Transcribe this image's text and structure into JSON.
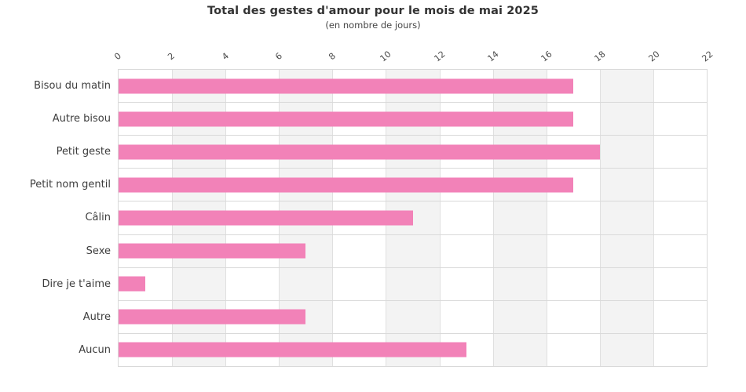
{
  "chart_data": {
    "type": "bar",
    "orientation": "horizontal",
    "title": "Total des gestes d'amour pour le mois de mai 2025",
    "subtitle": "(en nombre de jours)",
    "categories": [
      "Bisou du matin",
      "Autre bisou",
      "Petit geste",
      "Petit nom gentil",
      "Câlin",
      "Sexe",
      "Dire je t'aime",
      "Autre",
      "Aucun"
    ],
    "values": [
      17,
      17,
      18,
      17,
      11,
      7,
      1,
      7,
      13
    ],
    "xlabel": "",
    "ylabel": "",
    "xlim": [
      0,
      22
    ],
    "xticks": [
      0,
      2,
      4,
      6,
      8,
      10,
      12,
      14,
      16,
      18,
      20,
      22
    ],
    "xaxis_position": "top",
    "tick_label_rotation_deg": -40,
    "grid": true,
    "legend": false,
    "alternating_column_bands": true,
    "colors": {
      "bar": "#f282b8",
      "band": "#f3f3f3",
      "grid_vertical": "#e0e0e0",
      "grid_horizontal": "#d9d9d9",
      "plot_border": "#d9d9d9",
      "title_text": "#333333",
      "subtitle_text": "#454545",
      "category_label_text": "#3d3d3d",
      "tick_label_text": "#4a4a4a",
      "background": "#ffffff"
    }
  }
}
